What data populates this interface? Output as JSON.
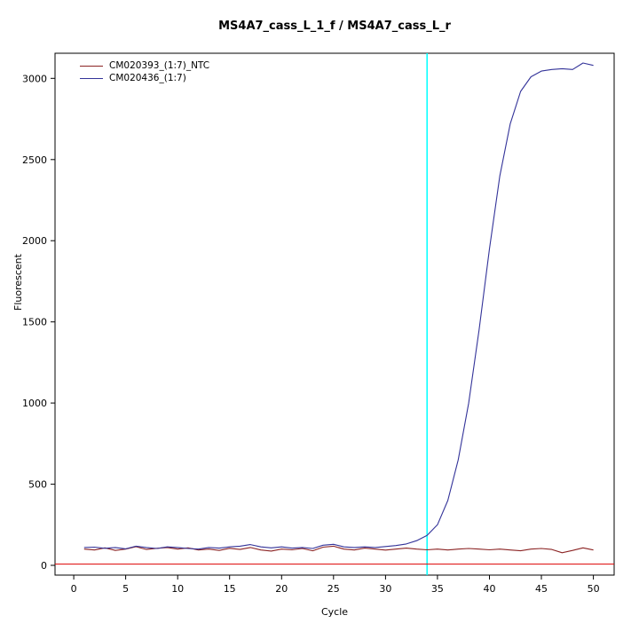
{
  "chart": {
    "title": "MS4A7_cass_L_1_f / MS4A7_cass_L_r",
    "xlabel": "Cycle",
    "ylabel": "Fluorescent"
  },
  "chart_data": {
    "type": "line",
    "title": "MS4A7_cass_L_1_f / MS4A7_cass_L_r",
    "xlabel": "Cycle",
    "ylabel": "Fluorescent",
    "xlim": [
      -1.8,
      52
    ],
    "ylim": [
      -60,
      3155
    ],
    "x_ticks": [
      0,
      5,
      10,
      15,
      20,
      25,
      30,
      35,
      40,
      45,
      50
    ],
    "y_ticks": [
      0,
      500,
      1000,
      1500,
      2000,
      2500,
      3000
    ],
    "grid": false,
    "legend_position": "top-left",
    "x": [
      1,
      2,
      3,
      4,
      5,
      6,
      7,
      8,
      9,
      10,
      11,
      12,
      13,
      14,
      15,
      16,
      17,
      18,
      19,
      20,
      21,
      22,
      23,
      24,
      25,
      26,
      27,
      28,
      29,
      30,
      31,
      32,
      33,
      34,
      35,
      36,
      37,
      38,
      39,
      40,
      41,
      42,
      43,
      44,
      45,
      46,
      47,
      48,
      49,
      50
    ],
    "series": [
      {
        "name": "CM020393_(1:7)_NTC",
        "color": "#8b2323",
        "values": [
          100,
          95,
          108,
          92,
          100,
          115,
          98,
          105,
          110,
          100,
          108,
          95,
          100,
          92,
          105,
          98,
          110,
          95,
          88,
          100,
          96,
          104,
          90,
          112,
          118,
          100,
          95,
          106,
          100,
          94,
          100,
          106,
          100,
          96,
          100,
          95,
          100,
          104,
          100,
          96,
          100,
          95,
          90,
          100,
          104,
          98,
          78,
          92,
          108,
          95
        ]
      },
      {
        "name": "CM020436_(1:7)",
        "color": "#333399",
        "values": [
          110,
          112,
          105,
          110,
          102,
          118,
          110,
          104,
          114,
          110,
          104,
          100,
          110,
          106,
          114,
          118,
          128,
          114,
          108,
          114,
          106,
          110,
          104,
          124,
          130,
          114,
          110,
          114,
          110,
          116,
          122,
          132,
          152,
          185,
          250,
          400,
          650,
          1000,
          1450,
          1950,
          2400,
          2720,
          2920,
          3010,
          3045,
          3055,
          3060,
          3055,
          3095,
          3080
        ]
      }
    ],
    "threshold_line": {
      "y": 8,
      "color": "#dd0000"
    },
    "ct_line": {
      "x": 34,
      "color": "#00ffff"
    }
  }
}
